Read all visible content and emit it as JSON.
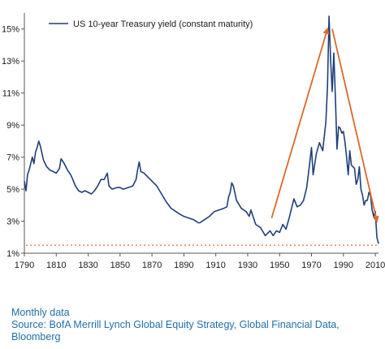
{
  "chart_data": {
    "type": "line",
    "legend": {
      "label": "US 10-year Treasury yield (constant maturity)",
      "placement": "top-left"
    },
    "xlim": [
      1790,
      2012
    ],
    "ylim": [
      1,
      16
    ],
    "x_ticks": [
      1790,
      1810,
      1830,
      1850,
      1870,
      1890,
      1910,
      1930,
      1950,
      1970,
      1990,
      2010
    ],
    "y_ticks": [
      {
        "value": 1,
        "label": "1%"
      },
      {
        "value": 3,
        "label": "3%"
      },
      {
        "value": 5,
        "label": "5%"
      },
      {
        "value": 7,
        "label": "7%"
      },
      {
        "value": 9,
        "label": "9%"
      },
      {
        "value": 11,
        "label": "11%"
      },
      {
        "value": 13,
        "label": "13%"
      },
      {
        "value": 15,
        "label": "15%"
      }
    ],
    "grid": false,
    "series": [
      {
        "name": "US 10-year Treasury yield (constant maturity)",
        "color": "#1f3f7a",
        "points": [
          [
            1790,
            5.5
          ],
          [
            1791,
            4.9
          ],
          [
            1792,
            5.9
          ],
          [
            1793,
            6.2
          ],
          [
            1795,
            7.0
          ],
          [
            1796,
            6.6
          ],
          [
            1797,
            7.3
          ],
          [
            1798,
            7.6
          ],
          [
            1799,
            8.0
          ],
          [
            1800,
            7.7
          ],
          [
            1802,
            6.8
          ],
          [
            1804,
            6.4
          ],
          [
            1806,
            6.2
          ],
          [
            1808,
            6.1
          ],
          [
            1810,
            6.0
          ],
          [
            1812,
            6.3
          ],
          [
            1813,
            6.9
          ],
          [
            1815,
            6.6
          ],
          [
            1817,
            6.2
          ],
          [
            1819,
            5.9
          ],
          [
            1820,
            5.7
          ],
          [
            1822,
            5.2
          ],
          [
            1824,
            4.9
          ],
          [
            1826,
            4.8
          ],
          [
            1828,
            4.9
          ],
          [
            1830,
            4.8
          ],
          [
            1832,
            4.7
          ],
          [
            1834,
            4.9
          ],
          [
            1836,
            5.2
          ],
          [
            1838,
            5.6
          ],
          [
            1840,
            5.6
          ],
          [
            1842,
            6.0
          ],
          [
            1843,
            5.2
          ],
          [
            1845,
            5.0
          ],
          [
            1848,
            5.1
          ],
          [
            1850,
            5.1
          ],
          [
            1852,
            5.0
          ],
          [
            1855,
            5.1
          ],
          [
            1858,
            5.2
          ],
          [
            1860,
            5.6
          ],
          [
            1861,
            6.2
          ],
          [
            1862,
            6.7
          ],
          [
            1863,
            6.1
          ],
          [
            1865,
            6.0
          ],
          [
            1867,
            5.8
          ],
          [
            1870,
            5.5
          ],
          [
            1873,
            5.2
          ],
          [
            1876,
            4.7
          ],
          [
            1879,
            4.2
          ],
          [
            1882,
            3.8
          ],
          [
            1885,
            3.6
          ],
          [
            1888,
            3.4
          ],
          [
            1890,
            3.3
          ],
          [
            1893,
            3.2
          ],
          [
            1896,
            3.1
          ],
          [
            1899,
            2.9
          ],
          [
            1900,
            2.9
          ],
          [
            1903,
            3.1
          ],
          [
            1906,
            3.3
          ],
          [
            1909,
            3.6
          ],
          [
            1912,
            3.7
          ],
          [
            1915,
            3.8
          ],
          [
            1917,
            3.9
          ],
          [
            1918,
            4.5
          ],
          [
            1919,
            4.8
          ],
          [
            1920,
            5.4
          ],
          [
            1921,
            5.2
          ],
          [
            1923,
            4.3
          ],
          [
            1926,
            3.8
          ],
          [
            1929,
            3.6
          ],
          [
            1931,
            3.3
          ],
          [
            1932,
            3.7
          ],
          [
            1935,
            2.8
          ],
          [
            1938,
            2.6
          ],
          [
            1941,
            2.1
          ],
          [
            1944,
            2.4
          ],
          [
            1946,
            2.1
          ],
          [
            1948,
            2.4
          ],
          [
            1950,
            2.3
          ],
          [
            1952,
            2.8
          ],
          [
            1954,
            2.5
          ],
          [
            1956,
            3.2
          ],
          [
            1959,
            4.4
          ],
          [
            1961,
            3.9
          ],
          [
            1963,
            4.0
          ],
          [
            1965,
            4.3
          ],
          [
            1967,
            5.1
          ],
          [
            1969,
            6.7
          ],
          [
            1970,
            7.6
          ],
          [
            1971,
            5.9
          ],
          [
            1973,
            7.2
          ],
          [
            1975,
            7.9
          ],
          [
            1977,
            7.4
          ],
          [
            1979,
            9.2
          ],
          [
            1980,
            11.4
          ],
          [
            1981,
            15.8
          ],
          [
            1982,
            13.0
          ],
          [
            1983,
            11.1
          ],
          [
            1984,
            13.5
          ],
          [
            1985,
            10.6
          ],
          [
            1986,
            7.5
          ],
          [
            1987,
            8.9
          ],
          [
            1988,
            8.8
          ],
          [
            1989,
            8.5
          ],
          [
            1990,
            8.6
          ],
          [
            1991,
            7.9
          ],
          [
            1992,
            7.0
          ],
          [
            1993,
            5.9
          ],
          [
            1994,
            7.4
          ],
          [
            1995,
            6.5
          ],
          [
            1996,
            6.4
          ],
          [
            1997,
            6.3
          ],
          [
            1998,
            5.3
          ],
          [
            1999,
            5.6
          ],
          [
            2000,
            6.4
          ],
          [
            2001,
            5.0
          ],
          [
            2002,
            4.6
          ],
          [
            2003,
            4.0
          ],
          [
            2004,
            4.3
          ],
          [
            2005,
            4.3
          ],
          [
            2006,
            4.8
          ],
          [
            2007,
            4.6
          ],
          [
            2008,
            3.7
          ],
          [
            2009,
            3.3
          ],
          [
            2010,
            3.6
          ],
          [
            2011,
            2.0
          ],
          [
            2012,
            1.6
          ]
        ]
      }
    ],
    "reference_line": {
      "y": 1.5,
      "style": "dotted",
      "color": "#e07030"
    },
    "annotations": [
      {
        "type": "arrow",
        "from": [
          1945,
          3.2
        ],
        "to": [
          1980,
          15.0
        ],
        "color": "#d9692a"
      },
      {
        "type": "arrow",
        "from": [
          1983,
          15.0
        ],
        "to": [
          2011,
          3.0
        ],
        "color": "#d9692a"
      }
    ]
  },
  "footer": {
    "line1": "Monthly data",
    "line2": "Source: BofA Merrill Lynch Global Equity Strategy, Global Financial Data,",
    "line3": "Bloomberg"
  }
}
